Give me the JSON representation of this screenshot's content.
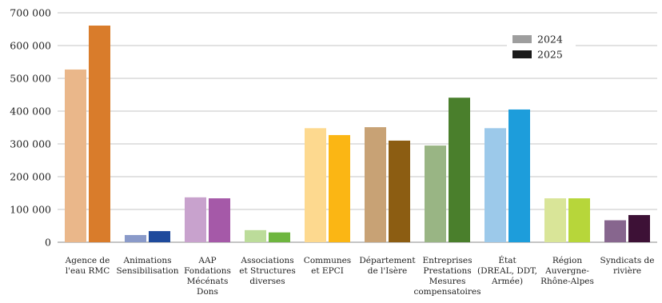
{
  "chart_data": {
    "type": "bar",
    "title": "",
    "xlabel": "",
    "ylabel": "",
    "ylim": [
      0,
      700000
    ],
    "yticks": [
      {
        "value": 0,
        "label": "0"
      },
      {
        "value": 100000,
        "label": "100 000"
      },
      {
        "value": 200000,
        "label": "200 000"
      },
      {
        "value": 300000,
        "label": "300 000"
      },
      {
        "value": 400000,
        "label": "400 000"
      },
      {
        "value": 500000,
        "label": "500 000"
      },
      {
        "value": 600000,
        "label": "600 000"
      },
      {
        "value": 700000,
        "label": "700 000"
      }
    ],
    "grid": true,
    "legend_position": "top-right",
    "categories": [
      {
        "lines": [
          "Agence de",
          "l'eau RMC"
        ]
      },
      {
        "lines": [
          "Animations",
          "Sensibilisation"
        ]
      },
      {
        "lines": [
          "AAP",
          "Fondations",
          "Mécénats",
          "Dons"
        ]
      },
      {
        "lines": [
          "Associations",
          "et Structures",
          "diverses"
        ]
      },
      {
        "lines": [
          "Communes",
          "et EPCI"
        ]
      },
      {
        "lines": [
          "Département",
          "de l'Isère"
        ]
      },
      {
        "lines": [
          "Entreprises",
          "Prestations",
          "Mesures",
          "compensatoires"
        ]
      },
      {
        "lines": [
          "État",
          "(DREAL, DDT,",
          "Armée)"
        ]
      },
      {
        "lines": [
          "Région",
          "Auvergne-",
          "Rhône-Alpes"
        ]
      },
      {
        "lines": [
          "Syndicats de",
          "rivière"
        ]
      }
    ],
    "series": [
      {
        "name": "2024",
        "legend_color": "#9e9e9e",
        "values": [
          527000,
          22000,
          137000,
          37000,
          348000,
          351000,
          295000,
          348000,
          134000,
          67000
        ],
        "colors": [
          "#eab78a",
          "#8a9ac9",
          "#c8a2cd",
          "#bcdc9a",
          "#fdd98f",
          "#c8a275",
          "#99b584",
          "#9cc9ea",
          "#d9e598",
          "#87668e"
        ]
      },
      {
        "name": "2025",
        "legend_color": "#1a1a1a",
        "values": [
          661000,
          34000,
          134000,
          30000,
          327000,
          310000,
          441000,
          405000,
          134000,
          83000
        ],
        "colors": [
          "#d97c2b",
          "#1e4a9c",
          "#a559a8",
          "#6eb63f",
          "#fbb614",
          "#8c5d12",
          "#4a7f2c",
          "#1d9ddb",
          "#b7d63a",
          "#3d1136"
        ]
      }
    ]
  }
}
